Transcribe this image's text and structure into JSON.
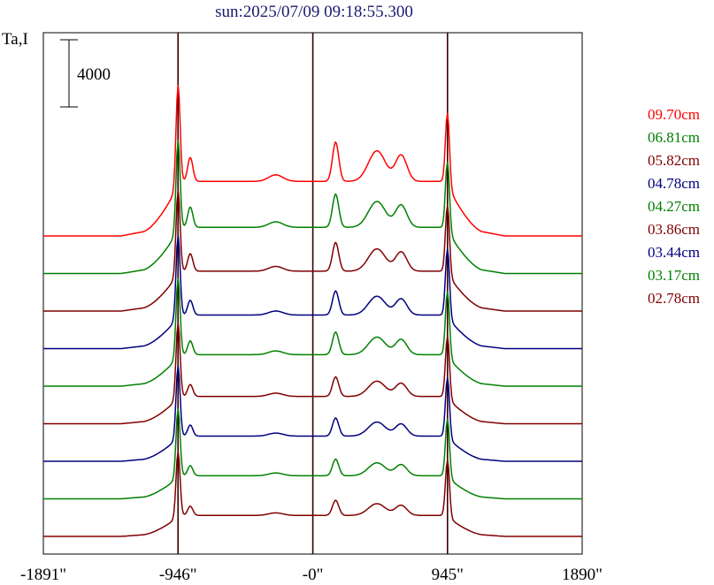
{
  "chart_data": {
    "type": "line",
    "title": "sun:2025/07/09 09:18:55.300",
    "ylabel": "Ta,I",
    "scale_bar_label": "4000",
    "x_range": [
      -1891,
      1890
    ],
    "x_ticks": [
      {
        "value": -1891,
        "label": "-1891\""
      },
      {
        "value": -946,
        "label": "-946\""
      },
      {
        "value": 0,
        "label": "-0\""
      },
      {
        "value": 945,
        "label": "945\""
      },
      {
        "value": 1890,
        "label": "1890\""
      }
    ],
    "vertical_markers": [
      -946,
      0,
      945
    ],
    "grid": false,
    "legend_position": "right",
    "series": [
      {
        "name": "09.70cm",
        "color": "#ff0000",
        "peak_left": 8600,
        "peak_right": 6900,
        "plateau": 2600,
        "base": 0
      },
      {
        "name": "06.81cm",
        "color": "#008000",
        "peak_left": 7600,
        "peak_right": 6300,
        "plateau": 2200,
        "base": 0
      },
      {
        "name": "05.82cm",
        "color": "#800000",
        "peak_left": 6900,
        "peak_right": 6000,
        "plateau": 1900,
        "base": 0
      },
      {
        "name": "04.78cm",
        "color": "#000080",
        "peak_left": 6500,
        "peak_right": 5700,
        "plateau": 1600,
        "base": 0
      },
      {
        "name": "04.27cm",
        "color": "#008000",
        "peak_left": 6200,
        "peak_right": 5400,
        "plateau": 1500,
        "base": 0
      },
      {
        "name": "03.86cm",
        "color": "#800000",
        "peak_left": 5800,
        "peak_right": 5000,
        "plateau": 1300,
        "base": 0
      },
      {
        "name": "03.44cm",
        "color": "#000080",
        "peak_left": 5500,
        "peak_right": 4800,
        "plateau": 1200,
        "base": 0
      },
      {
        "name": "03.17cm",
        "color": "#008000",
        "peak_left": 5200,
        "peak_right": 4600,
        "plateau": 1100,
        "base": 0
      },
      {
        "name": "02.78cm",
        "color": "#800000",
        "peak_left": 4900,
        "peak_right": 4400,
        "plateau": 1000,
        "base": 0
      }
    ]
  }
}
